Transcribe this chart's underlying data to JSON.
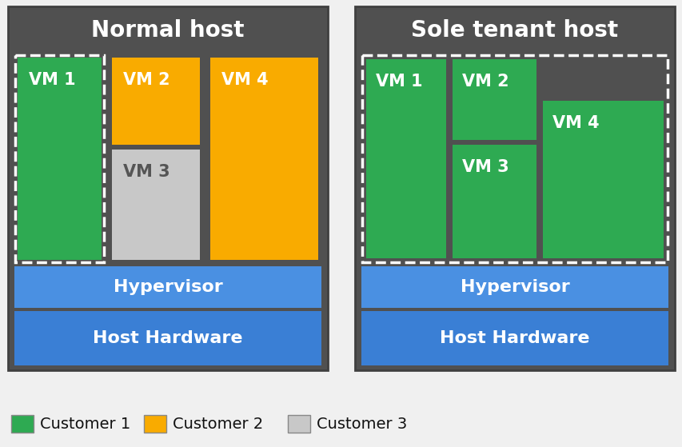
{
  "bg_color": "#636363",
  "fig_bg": "#f0f0f0",
  "green": "#2eaa52",
  "orange": "#f9ab00",
  "gray_vm": "#c8c8c8",
  "blue_hyp": "#4a90e2",
  "blue_hw": "#3a7fd5",
  "white": "#ffffff",
  "dark_gray": "#505050",
  "title_fontsize": 20,
  "vm_fontsize": 15,
  "layer_fontsize": 16,
  "legend_fontsize": 14,
  "normal_host_title": "Normal host",
  "sole_host_title": "Sole tenant host",
  "hypervisor_label": "Hypervisor",
  "hardware_label": "Host Hardware",
  "legend_items": [
    {
      "label": "Customer 1",
      "color": "#2eaa52"
    },
    {
      "label": "Customer 2",
      "color": "#f9ab00"
    },
    {
      "label": "Customer 3",
      "color": "#c8c8c8"
    }
  ]
}
